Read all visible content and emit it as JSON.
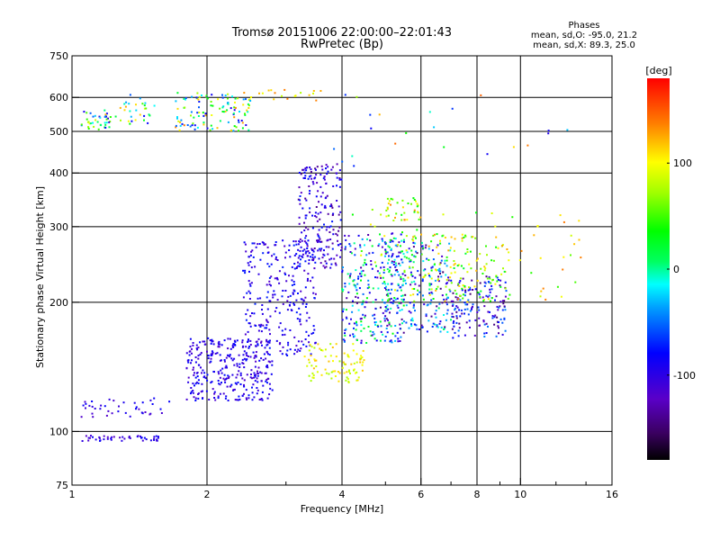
{
  "chart_data": {
    "type": "scatter",
    "title": "Tromsø 20151006 22:00:00–22:01:43",
    "subtitle": "RwPretec (Bp)",
    "xlabel": "Frequency [MHz]",
    "ylabel": "Stationary phase Virtual Height [km]",
    "x_scale": "log",
    "y_scale": "log",
    "xlim": [
      1,
      16
    ],
    "ylim": [
      75,
      750
    ],
    "x_ticks": [
      "1",
      "2",
      "4",
      "6",
      "8",
      "10",
      "16"
    ],
    "y_ticks": [
      "75",
      "100",
      "200",
      "300",
      "400",
      "500",
      "600",
      "750"
    ],
    "grid": true,
    "stats": {
      "header": "Phases",
      "line1": "mean, sd,O: -95.0, 21.2",
      "line2": "mean, sd,X: 89.3, 25.0"
    },
    "colorbar": {
      "label": "[deg]",
      "ticks": [
        "100",
        "0",
        "-100"
      ],
      "range": [
        -180,
        180
      ]
    },
    "clusters": [
      {
        "x": [
          1.05,
          1.22
        ],
        "y": [
          500,
          560
        ],
        "n": 40,
        "phase": [
          -110,
          120
        ]
      },
      {
        "x": [
          1.25,
          1.55
        ],
        "y": [
          520,
          610
        ],
        "n": 30,
        "phase": [
          -110,
          130
        ]
      },
      {
        "x": [
          1.7,
          2.5
        ],
        "y": [
          500,
          620
        ],
        "n": 120,
        "phase": [
          -100,
          140
        ]
      },
      {
        "x": [
          2.5,
          3.6
        ],
        "y": [
          590,
          625
        ],
        "n": 18,
        "phase": [
          60,
          140
        ]
      },
      {
        "x": [
          1.05,
          1.6
        ],
        "y": [
          95,
          98
        ],
        "n": 45,
        "phase": [
          -120,
          -80
        ]
      },
      {
        "x": [
          1.05,
          1.7
        ],
        "y": [
          108,
          120
        ],
        "n": 40,
        "phase": [
          -120,
          -80
        ]
      },
      {
        "x": [
          1.8,
          2.8
        ],
        "y": [
          118,
          165
        ],
        "n": 320,
        "phase": [
          -120,
          -75
        ]
      },
      {
        "x": [
          2.4,
          3.5
        ],
        "y": [
          150,
          280
        ],
        "n": 280,
        "phase": [
          -120,
          -70
        ]
      },
      {
        "x": [
          3.2,
          4.0
        ],
        "y": [
          240,
          420
        ],
        "n": 200,
        "phase": [
          -140,
          -70
        ]
      },
      {
        "x": [
          3.3,
          4.5
        ],
        "y": [
          130,
          160
        ],
        "n": 90,
        "phase": [
          70,
          120
        ]
      },
      {
        "x": [
          4.0,
          5.5
        ],
        "y": [
          160,
          290
        ],
        "n": 260,
        "phase": [
          -140,
          40
        ]
      },
      {
        "x": [
          5.0,
          7.0
        ],
        "y": [
          170,
          280
        ],
        "n": 220,
        "phase": [
          -150,
          10
        ]
      },
      {
        "x": [
          7.0,
          9.3
        ],
        "y": [
          165,
          230
        ],
        "n": 150,
        "phase": [
          -150,
          -40
        ]
      },
      {
        "x": [
          5.5,
          9.5
        ],
        "y": [
          200,
          290
        ],
        "n": 140,
        "phase": [
          20,
          130
        ]
      },
      {
        "x": [
          5.0,
          6.0
        ],
        "y": [
          310,
          350
        ],
        "n": 35,
        "phase": [
          30,
          140
        ]
      },
      {
        "x": [
          4.2,
          9.0
        ],
        "y": [
          200,
          330
        ],
        "n": 60,
        "phase": [
          20,
          110
        ]
      },
      {
        "x": [
          9.5,
          14.0
        ],
        "y": [
          200,
          330
        ],
        "n": 25,
        "phase": [
          40,
          140
        ]
      },
      {
        "x": [
          3.5,
          13.0
        ],
        "y": [
          400,
          620
        ],
        "n": 22,
        "phase": [
          -100,
          150
        ]
      }
    ]
  }
}
